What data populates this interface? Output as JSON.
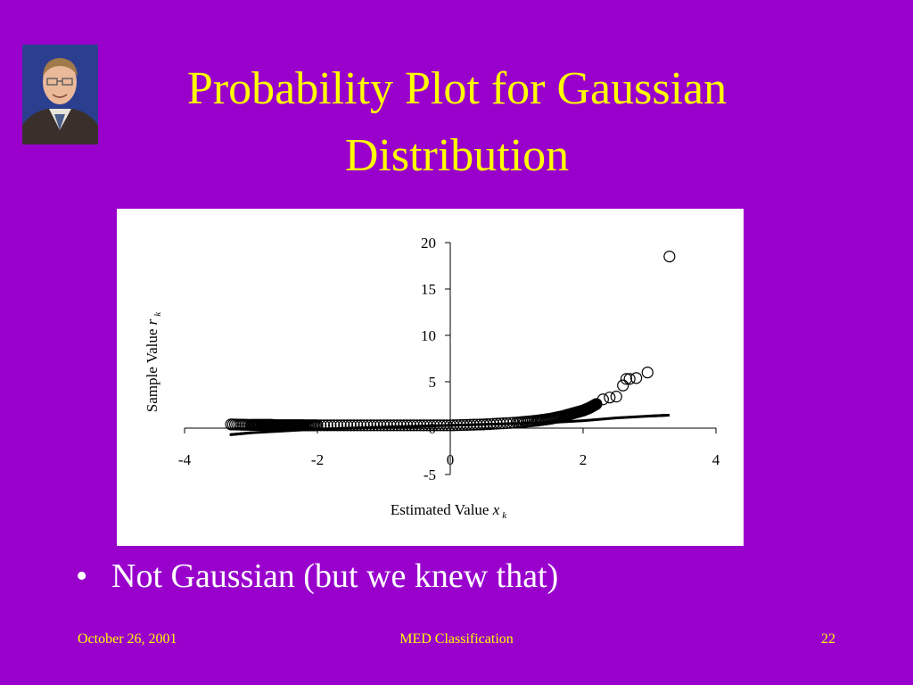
{
  "slide": {
    "title_line1": "Probability Plot for Gaussian",
    "title_line2": "Distribution",
    "bullet": "Not Gaussian (but we knew that)",
    "footer_date": "October 26, 2001",
    "footer_center": "MED Classification",
    "footer_page": "22"
  },
  "colors": {
    "background": "#9900cc",
    "title": "#ffff00",
    "body_text": "#ffffff",
    "footer_text": "#ffff00"
  },
  "chart_data": {
    "type": "scatter",
    "xlabel_prefix": "Estimated Value ",
    "xlabel_var": "x",
    "xlabel_sub": "k",
    "ylabel_prefix": "Sample Value ",
    "ylabel_var": "r",
    "ylabel_sub": "k",
    "xlim": [
      -4,
      4
    ],
    "ylim": [
      -5,
      20
    ],
    "x_ticks": [
      -4,
      -2,
      0,
      2,
      4
    ],
    "y_ticks": [
      -5,
      0,
      5,
      10,
      15,
      20
    ],
    "legend": "none",
    "grid": false,
    "series": [
      {
        "marker": "open-circle",
        "x": [
          -3.3,
          -3.0,
          -2.85,
          -2.7,
          -2.6,
          -2.5,
          -2.4,
          -2.3,
          -2.2,
          -2.0,
          -1.5,
          -1.0,
          -0.5,
          0.0,
          0.5,
          1.0,
          1.3,
          1.5,
          1.7,
          1.85,
          2.0,
          2.1,
          2.2,
          2.3,
          2.4,
          2.5,
          2.6,
          2.65,
          2.7,
          2.8,
          2.97,
          3.3
        ],
        "y": [
          0.4,
          0.35,
          0.35,
          0.35,
          0.3,
          0.3,
          0.3,
          0.3,
          0.3,
          0.3,
          0.3,
          0.3,
          0.3,
          0.3,
          0.4,
          0.6,
          0.8,
          1.0,
          1.3,
          1.6,
          1.9,
          2.2,
          2.6,
          3.1,
          3.3,
          3.4,
          4.6,
          5.3,
          5.3,
          5.4,
          6.0,
          18.5
        ]
      },
      {
        "marker": "square",
        "x": [
          -3.3,
          -3.0,
          -2.5,
          -2.0,
          -1.5,
          -1.0,
          -0.5,
          0.0,
          0.5,
          1.0,
          1.5,
          2.0,
          2.5,
          3.0,
          3.3
        ],
        "y": [
          -0.7,
          -0.5,
          -0.3,
          -0.1,
          0.0,
          0.1,
          0.2,
          0.3,
          0.4,
          0.5,
          0.6,
          0.8,
          1.1,
          1.3,
          1.4
        ]
      }
    ]
  }
}
